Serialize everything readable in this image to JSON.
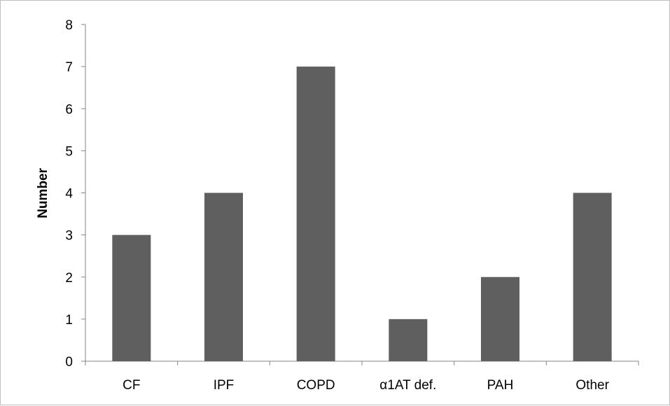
{
  "chart_data": {
    "type": "bar",
    "categories": [
      "CF",
      "IPF",
      "COPD",
      "α1AT def.",
      "PAH",
      "Other"
    ],
    "values": [
      3,
      4,
      7,
      1,
      2,
      4
    ],
    "title": "",
    "xlabel": "",
    "ylabel": "Number",
    "ylim": [
      0,
      8
    ],
    "yticks": [
      0,
      1,
      2,
      3,
      4,
      5,
      6,
      7,
      8
    ],
    "grid": false,
    "bar_color": "#5f5f5f",
    "axis_color": "#868686"
  }
}
